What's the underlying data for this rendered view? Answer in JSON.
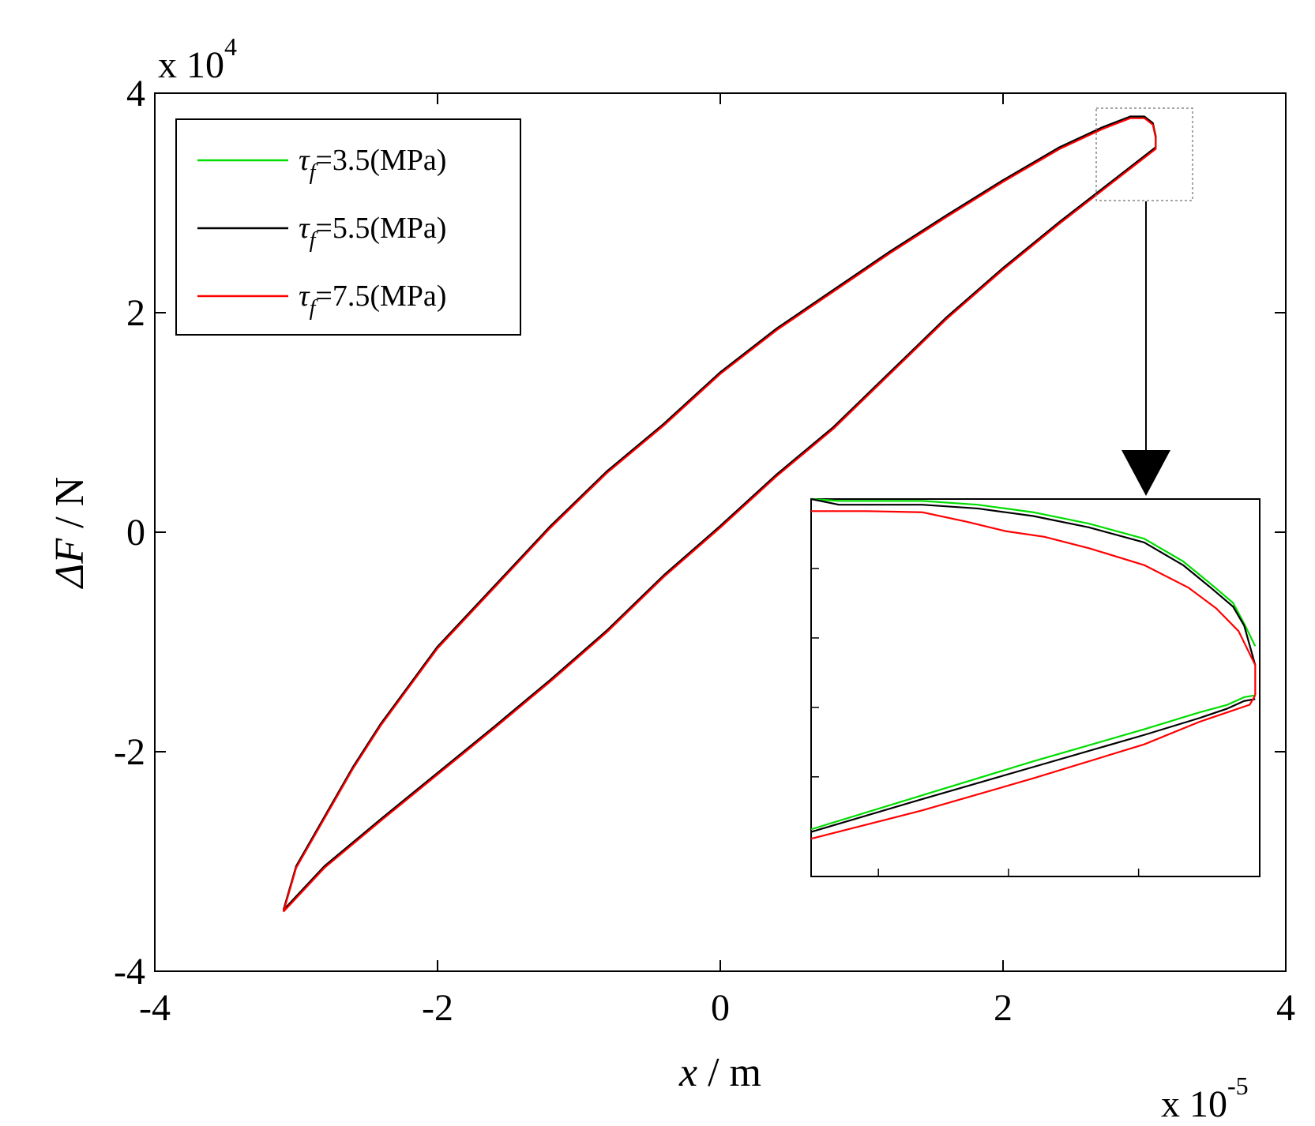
{
  "chart_data": {
    "type": "line",
    "xlabel_var": "x",
    "xlabel_unit": " / m",
    "ylabel_var": "ΔF",
    "ylabel_unit": " / N",
    "x_multiplier": {
      "base": "x 10",
      "exp": "-5"
    },
    "y_multiplier": {
      "base": "x 10",
      "exp": "4"
    },
    "xlim": [
      -4,
      4
    ],
    "ylim": [
      -4,
      4
    ],
    "xticks": [
      "-4",
      "-2",
      "0",
      "2",
      "4"
    ],
    "yticks": [
      "-4",
      "-2",
      "0",
      "2",
      "4"
    ],
    "legend_position": "top-left",
    "series": [
      {
        "name": "τf=3.5(MPa)",
        "sym": "τ",
        "sub": "f",
        "value": "=3.5(MPa)",
        "color": "#00dd00"
      },
      {
        "name": "τf=5.5(MPa)",
        "sym": "τ",
        "sub": "f",
        "value": "=5.5(MPa)",
        "color": "#000000"
      },
      {
        "name": "τf=7.5(MPa)",
        "sym": "τ",
        "sub": "f",
        "value": "=7.5(MPa)",
        "color": "#ff0000"
      }
    ],
    "loop_upper_branch": [
      [
        -3.09,
        -3.45
      ],
      [
        -3.0,
        -3.05
      ],
      [
        -2.8,
        -2.6
      ],
      [
        -2.6,
        -2.15
      ],
      [
        -2.4,
        -1.75
      ],
      [
        -2.0,
        -1.05
      ],
      [
        -1.6,
        -0.5
      ],
      [
        -1.2,
        0.05
      ],
      [
        -0.8,
        0.55
      ],
      [
        -0.4,
        0.98
      ],
      [
        0.0,
        1.45
      ],
      [
        0.4,
        1.85
      ],
      [
        0.8,
        2.2
      ],
      [
        1.2,
        2.55
      ],
      [
        1.6,
        2.88
      ],
      [
        2.0,
        3.2
      ],
      [
        2.4,
        3.5
      ],
      [
        2.7,
        3.68
      ],
      [
        2.9,
        3.78
      ],
      [
        3.0,
        3.78
      ],
      [
        3.06,
        3.72
      ],
      [
        3.08,
        3.6
      ],
      [
        3.08,
        3.5
      ]
    ],
    "loop_lower_branch": [
      [
        3.08,
        3.5
      ],
      [
        2.8,
        3.22
      ],
      [
        2.4,
        2.82
      ],
      [
        2.0,
        2.4
      ],
      [
        1.6,
        1.95
      ],
      [
        1.2,
        1.45
      ],
      [
        0.8,
        0.95
      ],
      [
        0.4,
        0.52
      ],
      [
        0.0,
        0.05
      ],
      [
        -0.4,
        -0.4
      ],
      [
        -0.8,
        -0.9
      ],
      [
        -1.2,
        -1.35
      ],
      [
        -1.6,
        -1.78
      ],
      [
        -2.0,
        -2.2
      ],
      [
        -2.4,
        -2.62
      ],
      [
        -2.8,
        -3.05
      ],
      [
        -3.09,
        -3.45
      ]
    ],
    "inset_series": [
      {
        "color": "#00dd00",
        "upper": [
          [
            0,
            0.0
          ],
          [
            0.05,
            0.005
          ],
          [
            0.2,
            0.005
          ],
          [
            0.3,
            0.015
          ],
          [
            0.4,
            0.035
          ],
          [
            0.5,
            0.065
          ],
          [
            0.6,
            0.105
          ],
          [
            0.67,
            0.165
          ],
          [
            0.72,
            0.225
          ],
          [
            0.76,
            0.275
          ],
          [
            0.78,
            0.33
          ],
          [
            0.8,
            0.39
          ]
        ],
        "lower": [
          [
            0.0,
            0.875
          ],
          [
            0.2,
            0.785
          ],
          [
            0.4,
            0.695
          ],
          [
            0.6,
            0.61
          ],
          [
            0.7,
            0.565
          ],
          [
            0.75,
            0.545
          ],
          [
            0.78,
            0.525
          ],
          [
            0.8,
            0.52
          ]
        ]
      },
      {
        "color": "#000000",
        "upper": [
          [
            0,
            0.0
          ],
          [
            0.05,
            0.015
          ],
          [
            0.2,
            0.015
          ],
          [
            0.3,
            0.025
          ],
          [
            0.4,
            0.045
          ],
          [
            0.5,
            0.075
          ],
          [
            0.6,
            0.115
          ],
          [
            0.67,
            0.175
          ],
          [
            0.72,
            0.235
          ],
          [
            0.76,
            0.285
          ],
          [
            0.78,
            0.335
          ],
          [
            0.8,
            0.44
          ]
        ],
        "lower": [
          [
            0.0,
            0.882
          ],
          [
            0.2,
            0.795
          ],
          [
            0.4,
            0.71
          ],
          [
            0.6,
            0.625
          ],
          [
            0.7,
            0.58
          ],
          [
            0.75,
            0.555
          ],
          [
            0.78,
            0.535
          ],
          [
            0.8,
            0.53
          ]
        ]
      },
      {
        "color": "#ff0000",
        "upper": [
          [
            0,
            0.032
          ],
          [
            0.1,
            0.032
          ],
          [
            0.2,
            0.035
          ],
          [
            0.28,
            0.06
          ],
          [
            0.35,
            0.085
          ],
          [
            0.42,
            0.1
          ],
          [
            0.5,
            0.13
          ],
          [
            0.6,
            0.175
          ],
          [
            0.68,
            0.235
          ],
          [
            0.73,
            0.29
          ],
          [
            0.77,
            0.35
          ],
          [
            0.8,
            0.44
          ],
          [
            0.8,
            0.52
          ]
        ],
        "lower": [
          [
            0.0,
            0.9
          ],
          [
            0.2,
            0.825
          ],
          [
            0.4,
            0.74
          ],
          [
            0.6,
            0.65
          ],
          [
            0.7,
            0.59
          ],
          [
            0.75,
            0.565
          ],
          [
            0.79,
            0.545
          ],
          [
            0.8,
            0.52
          ]
        ]
      }
    ]
  }
}
